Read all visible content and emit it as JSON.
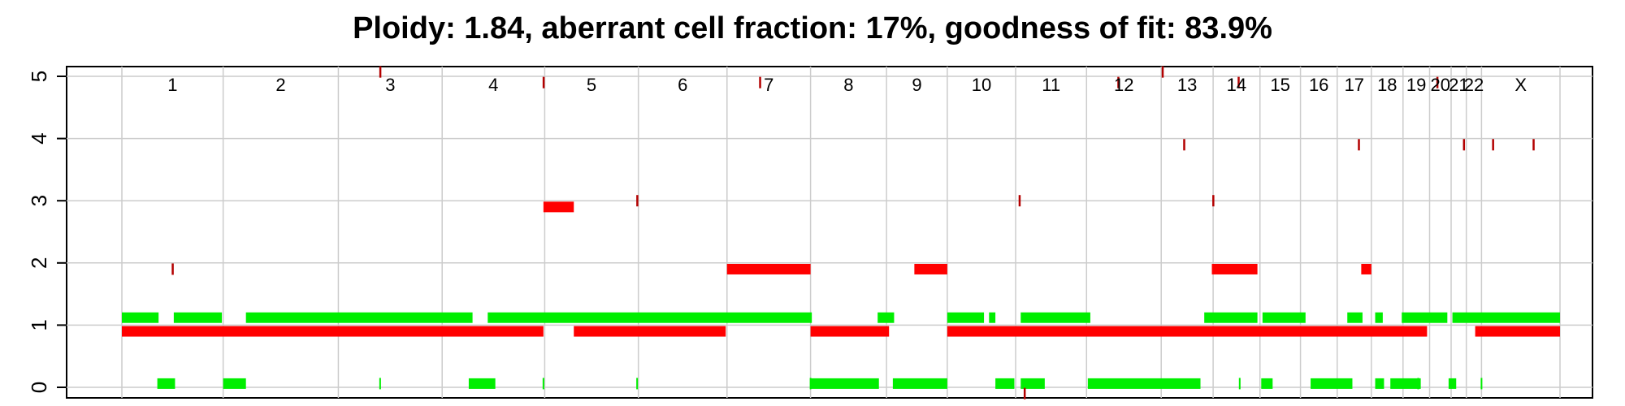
{
  "chart_data": {
    "type": "scatter",
    "title": "Ploidy: 1.84, aberrant cell fraction: 17%, goodness of fit: 83.9%",
    "ylim": [
      0,
      5
    ],
    "y_ticks": [
      "0",
      "1",
      "2",
      "3",
      "4",
      "5"
    ],
    "grid": true,
    "chromosomes": [
      "1",
      "2",
      "3",
      "4",
      "5",
      "6",
      "7",
      "8",
      "9",
      "10",
      "11",
      "12",
      "13",
      "14",
      "15",
      "16",
      "17",
      "18",
      "19",
      "20",
      "21",
      "22",
      "X"
    ],
    "chromosome_boundaries": [
      0,
      0.08,
      0.171,
      0.253,
      0.334,
      0.408,
      0.478,
      0.544,
      0.604,
      0.652,
      0.706,
      0.762,
      0.821,
      0.862,
      0.899,
      0.931,
      0.96,
      0.987,
      1.012,
      1.033,
      1.05,
      1.062,
      1.074,
      1.136
    ],
    "colors": {
      "red": "#ff0000",
      "green": "#00ee00",
      "dark_red": "#b30000",
      "grid": "#cccccc"
    },
    "series": [
      {
        "color": "#ff0000",
        "segments": [
          [
            0.0,
            0.333,
            0.9
          ],
          [
            0.357,
            0.477,
            0.9
          ],
          [
            0.544,
            0.606,
            0.9
          ],
          [
            0.652,
            1.031,
            0.9
          ],
          [
            1.069,
            1.136,
            0.9
          ],
          [
            0.333,
            0.357,
            2.9
          ],
          [
            0.478,
            0.544,
            1.9
          ],
          [
            0.626,
            0.652,
            1.9
          ],
          [
            0.861,
            0.897,
            1.9
          ],
          [
            0.979,
            0.987,
            1.9
          ]
        ]
      },
      {
        "color": "#00ee00",
        "segments": [
          [
            0.0,
            0.029,
            1.12
          ],
          [
            0.041,
            0.079,
            1.12
          ],
          [
            0.098,
            0.277,
            1.12
          ],
          [
            0.289,
            0.545,
            1.12
          ],
          [
            0.597,
            0.61,
            1.12
          ],
          [
            0.652,
            0.681,
            1.12
          ],
          [
            0.685,
            0.69,
            1.12
          ],
          [
            0.71,
            0.765,
            1.12
          ],
          [
            0.855,
            0.897,
            1.12
          ],
          [
            0.901,
            0.935,
            1.12
          ],
          [
            0.968,
            0.98,
            1.12
          ],
          [
            0.99,
            0.996,
            1.12
          ],
          [
            1.011,
            1.047,
            1.12
          ],
          [
            1.051,
            1.136,
            1.12
          ],
          [
            0.028,
            0.042,
            0.06
          ],
          [
            0.08,
            0.098,
            0.06
          ],
          [
            0.274,
            0.295,
            0.06
          ],
          [
            0.544,
            0.598,
            0.06
          ],
          [
            0.609,
            0.652,
            0.06
          ],
          [
            0.69,
            0.697,
            0.06
          ],
          [
            0.697,
            0.705,
            0.06
          ],
          [
            0.71,
            0.729,
            0.06
          ],
          [
            0.763,
            0.852,
            0.06
          ],
          [
            0.9,
            0.909,
            0.06
          ],
          [
            0.939,
            0.972,
            0.06
          ],
          [
            0.99,
            0.997,
            0.06
          ],
          [
            1.002,
            1.026,
            0.06
          ],
          [
            1.048,
            1.054,
            0.06
          ]
        ]
      }
    ],
    "ticks": [
      [
        0.04,
        1.9
      ],
      [
        0.204,
        5.07
      ],
      [
        0.333,
        4.9
      ],
      [
        0.407,
        3.0
      ],
      [
        0.504,
        4.9
      ],
      [
        0.713,
        -0.1
      ],
      [
        0.709,
        3.0
      ],
      [
        0.787,
        4.9
      ],
      [
        0.822,
        5.07
      ],
      [
        0.839,
        3.9
      ],
      [
        0.862,
        3.0
      ],
      [
        0.882,
        4.9
      ],
      [
        0.977,
        3.9
      ],
      [
        1.039,
        4.9
      ],
      [
        1.06,
        3.9
      ],
      [
        1.083,
        3.9
      ],
      [
        1.115,
        3.9
      ]
    ],
    "mini_ticks": [
      [
        0.204,
        0.06
      ],
      [
        0.333,
        0.06
      ],
      [
        0.407,
        0.06
      ],
      [
        0.544,
        0.06
      ],
      [
        0.883,
        0.06
      ],
      [
        1.024,
        0.06
      ],
      [
        1.074,
        0.06
      ]
    ]
  }
}
